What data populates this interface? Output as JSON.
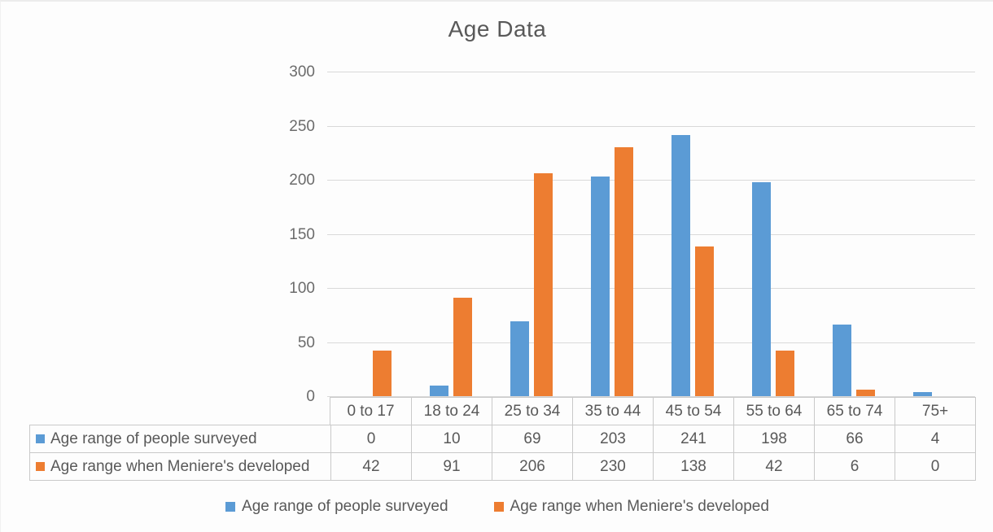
{
  "title": "Age Data",
  "colors": {
    "series1": "#5B9BD5",
    "series2": "#ED7D31",
    "gridline": "#D9D9D9",
    "text": "#595959",
    "table_border": "#C9C9C9"
  },
  "chart_data": {
    "type": "bar",
    "title": "Age Data",
    "xlabel": "",
    "ylabel": "",
    "categories": [
      "0 to 17",
      "18 to 24",
      "25 to 34",
      "35 to 44",
      "45 to 54",
      "55 to 64",
      "65 to 74",
      "75+"
    ],
    "series": [
      {
        "name": "Age range of people surveyed",
        "color": "#5B9BD5",
        "values": [
          0,
          10,
          69,
          203,
          241,
          198,
          66,
          4
        ]
      },
      {
        "name": "Age range when Meniere's developed",
        "color": "#ED7D31",
        "values": [
          42,
          91,
          206,
          230,
          138,
          42,
          6,
          0
        ]
      }
    ],
    "ylim": [
      0,
      300
    ],
    "yticks": [
      0,
      50,
      100,
      150,
      200,
      250,
      300
    ],
    "grid": true,
    "legend_position": "bottom",
    "data_table_shown": true
  }
}
